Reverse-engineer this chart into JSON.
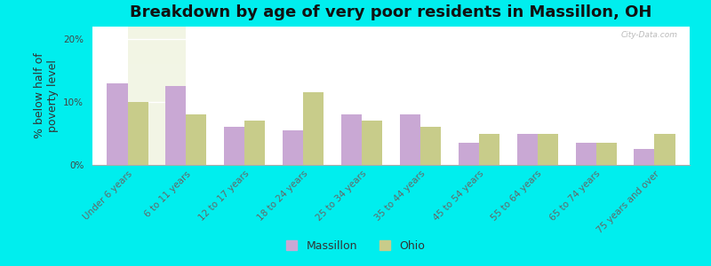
{
  "title": "Breakdown by age of very poor residents in Massillon, OH",
  "ylabel": "% below half of\npoverty level",
  "categories": [
    "Under 6 years",
    "6 to 11 years",
    "12 to 17 years",
    "18 to 24 years",
    "25 to 34 years",
    "35 to 44 years",
    "45 to 54 years",
    "55 to 64 years",
    "65 to 74 years",
    "75 years and over"
  ],
  "massillon_values": [
    13.0,
    12.5,
    6.0,
    5.5,
    8.0,
    8.0,
    3.5,
    5.0,
    3.5,
    2.5
  ],
  "ohio_values": [
    10.0,
    8.0,
    7.0,
    11.5,
    7.0,
    6.0,
    5.0,
    5.0,
    3.5,
    5.0
  ],
  "massillon_color": "#C9A8D4",
  "ohio_color": "#C8CC8A",
  "background_outer": "#00EEEE",
  "background_plot_top": "#E5EED0",
  "background_plot_bottom": "#F2F5E5",
  "ylim": [
    0,
    22
  ],
  "yticks": [
    0,
    10,
    20
  ],
  "ytick_labels": [
    "0%",
    "10%",
    "20%"
  ],
  "bar_width": 0.35,
  "title_fontsize": 13,
  "axis_label_fontsize": 9,
  "tick_fontsize": 7.5,
  "legend_fontsize": 9,
  "watermark_text": "City-Data.com",
  "watermark_color": "#BBBBBB"
}
